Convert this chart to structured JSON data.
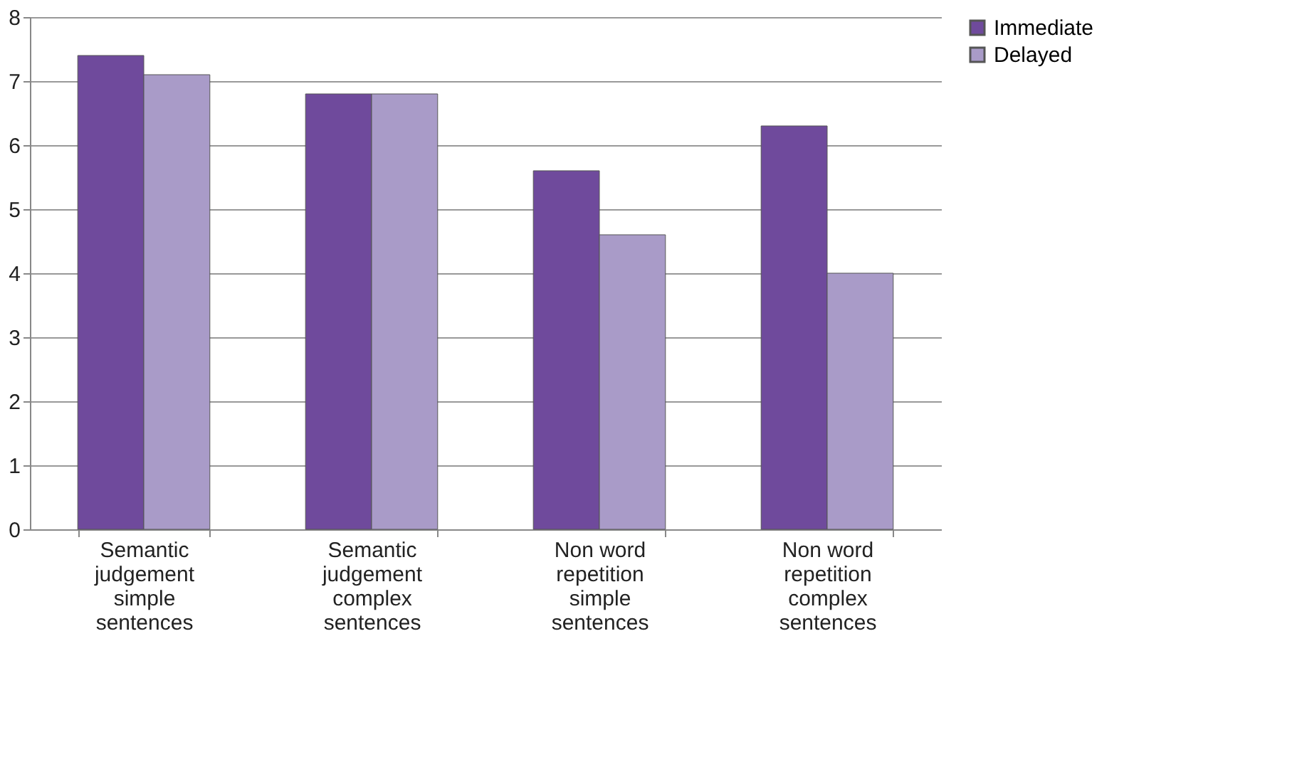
{
  "chart_data": {
    "type": "bar",
    "categories": [
      "Semantic\njudgement\nsimple\nsentences",
      "Semantic\njudgement\ncomplex\nsentences",
      "Non word\nrepetition\nsimple\nsentences",
      "Non word\nrepetition\ncomplex\nsentences"
    ],
    "series": [
      {
        "name": "Immediate",
        "color": "#6f4a9c",
        "values": [
          7.4,
          6.8,
          5.6,
          6.3
        ]
      },
      {
        "name": "Delayed",
        "color": "#a99bc8",
        "values": [
          7.1,
          6.8,
          4.6,
          4.0
        ]
      }
    ],
    "ylim": [
      0,
      8
    ],
    "yticks": [
      0,
      1,
      2,
      3,
      4,
      5,
      6,
      7,
      8
    ],
    "grid": "y",
    "legend": "right"
  }
}
